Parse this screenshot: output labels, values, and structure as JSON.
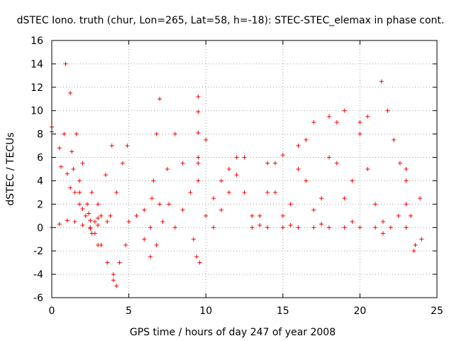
{
  "chart_data": {
    "type": "scatter",
    "title": "dSTEC Iono. truth (chur, Lon=265, Lat=58, h=-18): STEC-STEC_elemax in phase cont.",
    "xlabel": "GPS time / hours of day 247 of year 2008",
    "ylabel": "dSTEC  / TECUs",
    "xlim": [
      0,
      25
    ],
    "ylim": [
      -6,
      16
    ],
    "xticks": [
      0,
      5,
      10,
      15,
      20,
      25
    ],
    "yticks": [
      -6,
      -4,
      -2,
      0,
      2,
      4,
      6,
      8,
      10,
      12,
      14,
      16
    ],
    "grid": true,
    "marker": "plus",
    "color": "#ff0000",
    "arcs": [
      {
        "x": [
          0.0,
          0.5,
          1.0,
          1.5,
          2.0,
          2.5,
          3.0
        ],
        "y": [
          8.6,
          6.8,
          4.6,
          3.0,
          1.6,
          0.6,
          0.2
        ]
      },
      {
        "x": [
          0.0,
          0.6,
          1.2,
          1.8,
          2.4,
          3.0,
          3.6
        ],
        "y": [
          8.2,
          5.2,
          3.4,
          2.0,
          1.2,
          0.8,
          0.5
        ]
      },
      {
        "x": [
          0.0,
          0.5,
          1.0,
          1.5,
          2.0,
          2.5
        ],
        "y": [
          0.0,
          0.3,
          0.6,
          0.5,
          0.2,
          -0.1
        ]
      },
      {
        "x": [
          0.9,
          1.2,
          1.6,
          2.0,
          2.6,
          3.2
        ],
        "y": [
          14.0,
          11.5,
          8.0,
          5.5,
          3.0,
          1.0
        ]
      },
      {
        "x": [
          0.8,
          1.3,
          1.8,
          2.3,
          2.8
        ],
        "y": [
          8.0,
          6.5,
          4.0,
          2.0,
          0.5
        ]
      },
      {
        "x": [
          1.4,
          1.8,
          2.2,
          2.6,
          3.0
        ],
        "y": [
          5.0,
          3.0,
          1.0,
          -0.5,
          -1.5
        ]
      },
      {
        "x": [
          2.8,
          3.2,
          3.6,
          4.0,
          4.2
        ],
        "y": [
          -0.5,
          -1.5,
          -3.0,
          -4.5,
          -5.0
        ]
      },
      {
        "x": [
          2.5,
          3.0,
          3.5,
          3.9
        ],
        "y": [
          0.0,
          2.0,
          4.5,
          7.0
        ]
      },
      {
        "x": [
          3.8,
          4.2,
          4.6,
          4.9
        ],
        "y": [
          1.0,
          3.0,
          5.5,
          7.0
        ]
      },
      {
        "x": [
          4.0,
          4.4,
          4.8
        ],
        "y": [
          -4.0,
          -3.0,
          -1.5
        ]
      },
      {
        "x": [
          5.0,
          5.5,
          6.0,
          6.5
        ],
        "y": [
          0.5,
          1.0,
          1.5,
          2.5
        ]
      },
      {
        "x": [
          6.4,
          6.6,
          6.8,
          7.0
        ],
        "y": [
          0.0,
          4.0,
          8.0,
          11.0
        ]
      },
      {
        "x": [
          6.0,
          6.4,
          6.8,
          7.2,
          7.6
        ],
        "y": [
          -1.0,
          -2.5,
          -1.5,
          0.5,
          2.0
        ]
      },
      {
        "x": [
          7.0,
          7.5,
          8.0,
          8.5
        ],
        "y": [
          2.0,
          5.0,
          8.0,
          5.5
        ]
      },
      {
        "x": [
          8.0,
          8.5,
          9.0,
          9.5,
          10.0
        ],
        "y": [
          0.0,
          1.5,
          3.0,
          5.5,
          7.5
        ]
      },
      {
        "x": [
          9.2,
          9.4,
          9.6
        ],
        "y": [
          -1.0,
          -2.5,
          -3.0
        ]
      },
      {
        "x": [
          9.5,
          9.5,
          9.5,
          9.5,
          9.5
        ],
        "y": [
          11.2,
          9.9,
          8.1,
          6.0,
          4.0
        ]
      },
      {
        "x": [
          10.0,
          10.5,
          11.0,
          11.5
        ],
        "y": [
          1.0,
          2.5,
          4.0,
          5.0
        ]
      },
      {
        "x": [
          10.5,
          11.0,
          11.5,
          12.0,
          12.5
        ],
        "y": [
          0.0,
          1.5,
          3.0,
          4.5,
          6.0
        ]
      },
      {
        "x": [
          12.0,
          12.5,
          13.0,
          13.5,
          14.0
        ],
        "y": [
          6.0,
          3.0,
          1.0,
          0.2,
          0.0
        ]
      },
      {
        "x": [
          13.0,
          13.5,
          14.0,
          14.5,
          15.0
        ],
        "y": [
          0.0,
          1.0,
          3.0,
          5.5,
          6.2
        ]
      },
      {
        "x": [
          14.0,
          14.5,
          15.0,
          15.5,
          16.0
        ],
        "y": [
          5.5,
          3.0,
          1.0,
          0.2,
          0.0
        ]
      },
      {
        "x": [
          15.0,
          15.5,
          16.0,
          16.5,
          17.0
        ],
        "y": [
          0.0,
          2.0,
          5.0,
          7.5,
          9.0
        ]
      },
      {
        "x": [
          16.0,
          16.5,
          17.0,
          17.5,
          18.0
        ],
        "y": [
          7.0,
          4.0,
          1.5,
          0.3,
          0.0
        ]
      },
      {
        "x": [
          17.0,
          17.5,
          18.0,
          18.5,
          19.0
        ],
        "y": [
          0.0,
          2.5,
          6.0,
          9.0,
          10.0
        ]
      },
      {
        "x": [
          18.0,
          18.5,
          19.0,
          19.5,
          20.0
        ],
        "y": [
          9.5,
          5.5,
          2.5,
          0.5,
          0.0
        ]
      },
      {
        "x": [
          19.0,
          19.5,
          20.0,
          20.5
        ],
        "y": [
          0.0,
          4.0,
          8.0,
          9.5
        ]
      },
      {
        "x": [
          20.0,
          20.5,
          21.0,
          21.5
        ],
        "y": [
          9.0,
          5.0,
          2.0,
          0.5
        ]
      },
      {
        "x": [
          21.4,
          21.8,
          22.2,
          22.6,
          23.0
        ],
        "y": [
          12.5,
          10.0,
          7.5,
          5.5,
          5.0
        ]
      },
      {
        "x": [
          21.0,
          21.5,
          22.0,
          22.5,
          23.0
        ],
        "y": [
          0.0,
          -0.5,
          0.0,
          1.0,
          2.0
        ]
      },
      {
        "x": [
          23.0,
          23.3,
          23.6,
          23.9
        ],
        "y": [
          4.0,
          1.0,
          -1.5,
          2.5
        ]
      },
      {
        "x": [
          23.0,
          23.5,
          24.0
        ],
        "y": [
          0.0,
          -2.0,
          -1.0
        ]
      }
    ]
  }
}
